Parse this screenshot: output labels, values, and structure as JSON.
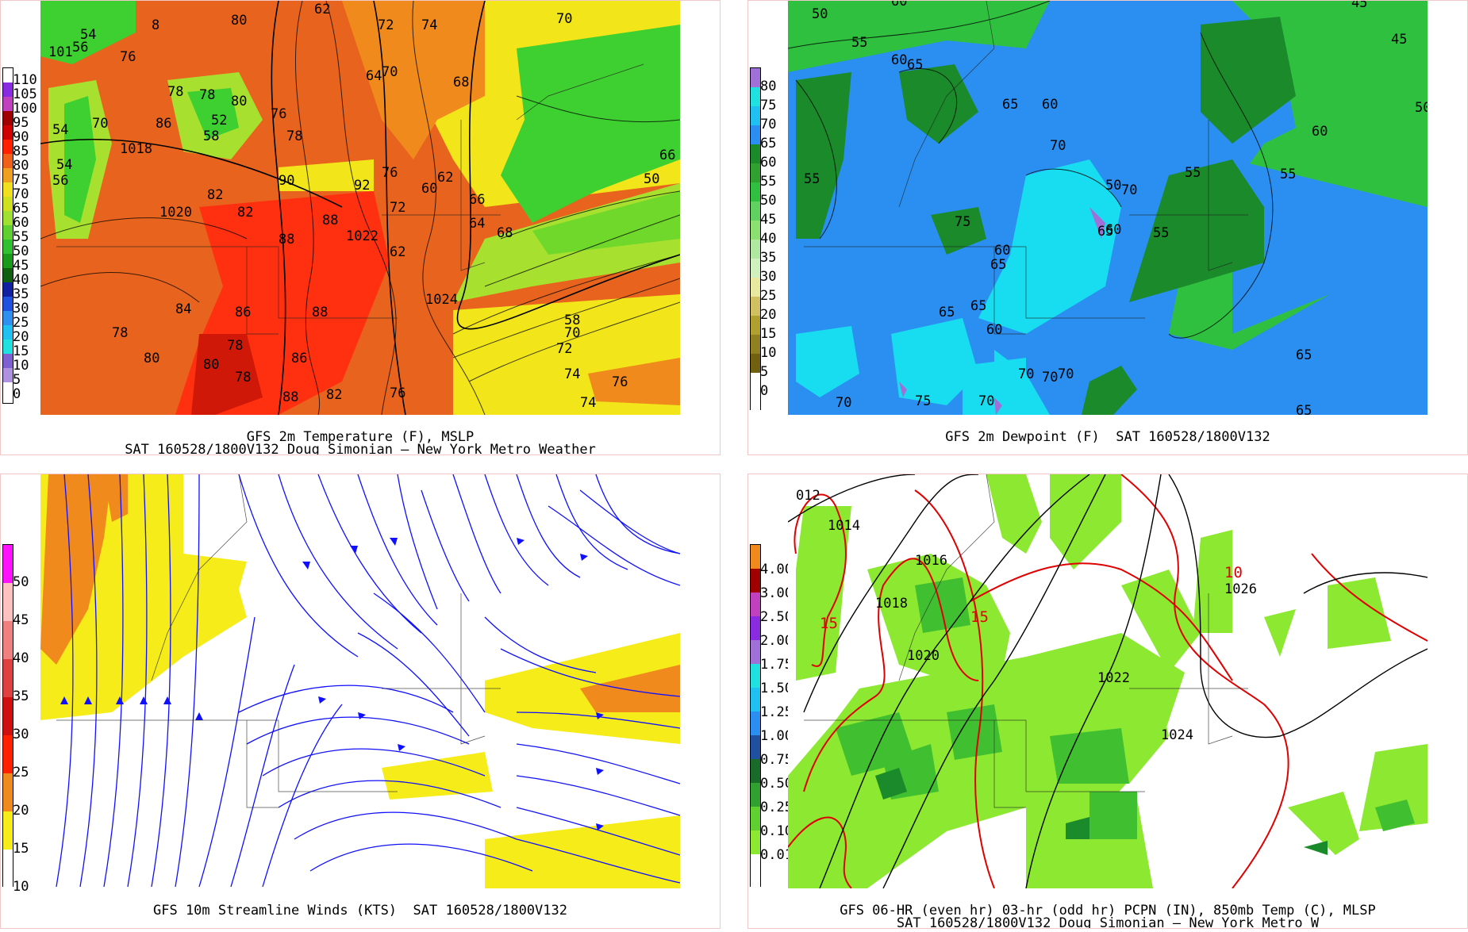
{
  "colors": {
    "temp_bg": "#e8641e",
    "temp_hot": "#ff3010",
    "temp_warm": "#f08a1c",
    "temp_yellow": "#f2e61a",
    "temp_lime": "#a8e030",
    "temp_green": "#3ecf30",
    "dew_blue": "#2a8ff0",
    "dew_light": "#18dcf0",
    "dew_green": "#30c040",
    "dew_dark": "#1a8a2a",
    "dew_purple": "#a070d8",
    "wind_yellow": "#f5ec1a",
    "wind_orange": "#f08a1c",
    "streamline": "#1010ff",
    "precip_green": "#8ce830",
    "precip_mid": "#40c030",
    "precip_dark": "#1a8a2a",
    "isotherm": "#e00000"
  },
  "panels": {
    "temp": {
      "caption_line1": "GFS 2m Temperature (F), MSLP",
      "caption_line2": "SAT 160528/1800V132 Doug Simonian — New York Metro Weather",
      "legend": [
        "110",
        "105",
        "100",
        "95",
        "90",
        "85",
        "80",
        "75",
        "70",
        "65",
        "60",
        "55",
        "50",
        "45",
        "40",
        "35",
        "30",
        "25",
        "20",
        "15",
        "10",
        "5",
        "0"
      ],
      "map_labels": [
        "80",
        "62",
        "72",
        "74",
        "70",
        "70",
        "54",
        "56",
        "76",
        "101",
        "8",
        "64",
        "68",
        "78",
        "70",
        "54",
        "86",
        "1018",
        "78",
        "80",
        "76",
        "78",
        "58",
        "52",
        "54",
        "56",
        "82",
        "90",
        "92",
        "88",
        "1020",
        "82",
        "88",
        "1022",
        "62",
        "60",
        "66",
        "64",
        "68",
        "76",
        "72",
        "62",
        "84",
        "86",
        "88",
        "1024",
        "78",
        "80",
        "78",
        "86",
        "80",
        "78",
        "88",
        "82",
        "76",
        "58",
        "70",
        "72",
        "74",
        "76",
        "74",
        "66",
        "50"
      ]
    },
    "dew": {
      "caption_line1": "GFS 2m Dewpoint (F)  SAT 160528/1800V132",
      "legend": [
        "80",
        "75",
        "70",
        "65",
        "60",
        "55",
        "50",
        "45",
        "40",
        "35",
        "30",
        "25",
        "20",
        "15",
        "10",
        "5",
        "0"
      ],
      "map_labels": [
        "50",
        "60",
        "45",
        "55",
        "60",
        "65",
        "60",
        "65",
        "70",
        "45",
        "50",
        "55",
        "55",
        "60",
        "55",
        "50",
        "70",
        "55",
        "60",
        "60",
        "65",
        "65",
        "75",
        "65",
        "60",
        "65",
        "70",
        "70",
        "70",
        "75",
        "70",
        "65",
        "65",
        "70"
      ]
    },
    "wind": {
      "caption_line1": "GFS 10m Streamline Winds (KTS)  SAT 160528/1800V132",
      "legend": [
        "50",
        "45",
        "40",
        "35",
        "30",
        "25",
        "20",
        "15",
        "10"
      ]
    },
    "precip": {
      "caption_line1": "GFS 06-HR (even hr) 03-hr (odd hr) PCPN (IN), 850mb Temp (C), MLSP",
      "caption_line2": "SAT 160528/1800V132 Doug Simonian — New York Metro W",
      "legend": [
        "4.00",
        "3.00",
        "2.50",
        "2.00",
        "1.75",
        "1.50",
        "1.25",
        "1.00",
        "0.75",
        "0.50",
        "0.25",
        "0.10",
        "0.01"
      ],
      "map_labels": [
        "012",
        "1014",
        "1016",
        "1018",
        "15",
        "15",
        "1020",
        "1022",
        "1024",
        "1026",
        "10"
      ]
    }
  }
}
